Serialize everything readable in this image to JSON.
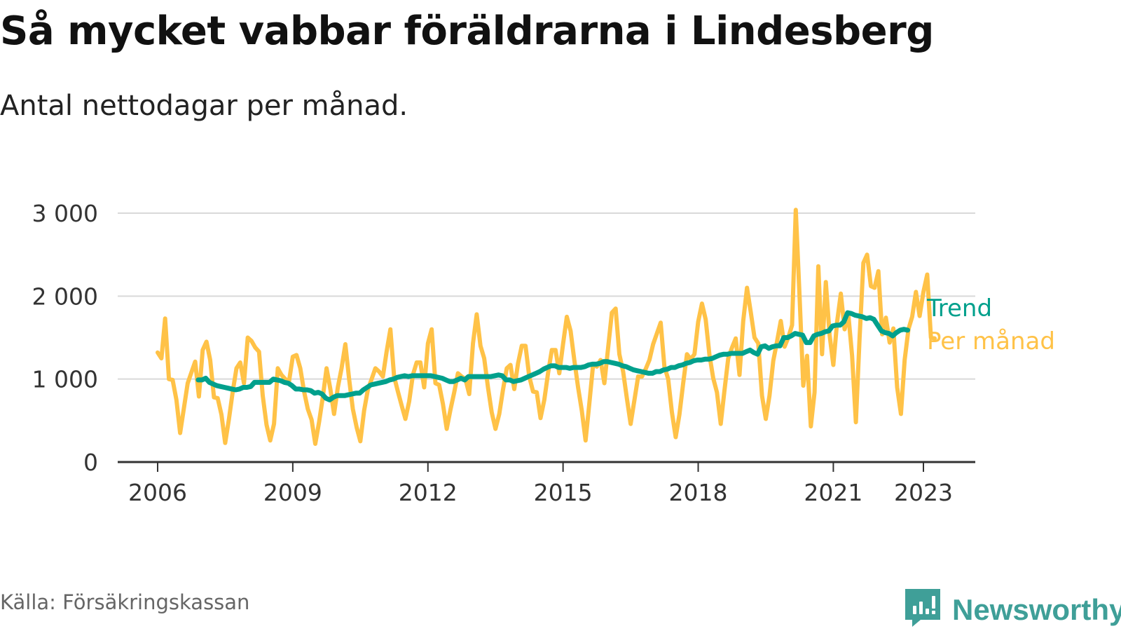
{
  "title": "Så mycket vabbar föräldrarna i Lindesberg",
  "subtitle": "Antal nettodagar per månad.",
  "source": "Källa: Försäkringskassan",
  "brand": {
    "name": "Newsworthy",
    "icon": "newsworthy-logo-icon",
    "color": "#3f9f98"
  },
  "colors": {
    "trend": "#00a08c",
    "monthly": "#ffc247",
    "grid": "#d9d9d9",
    "axis": "#333333"
  },
  "chart_data": {
    "type": "line",
    "title": "Så mycket vabbar föräldrarna i Lindesberg",
    "subtitle": "Antal nettodagar per månad.",
    "xlabel": "",
    "ylabel": "",
    "xlim": [
      2005.2,
      2024.2
    ],
    "ylim": [
      0,
      3000
    ],
    "y_ticks": [
      0,
      1000,
      2000,
      3000
    ],
    "y_tick_labels": [
      "0",
      "1 000",
      "2 000",
      "3 000"
    ],
    "x_ticks": [
      2006,
      2009,
      2012,
      2015,
      2018,
      2021,
      2023
    ],
    "x_tick_labels": [
      "2006",
      "2009",
      "2012",
      "2015",
      "2018",
      "2021",
      "2023"
    ],
    "grid": true,
    "legend": "direct labels at line ends (right)",
    "series": [
      {
        "name": "Per månad",
        "color": "#ffc247",
        "start": 2006.0,
        "step_months": 1,
        "values": [
          1320,
          1250,
          1730,
          1000,
          990,
          750,
          350,
          650,
          950,
          1080,
          1210,
          790,
          1350,
          1450,
          1230,
          780,
          770,
          570,
          230,
          520,
          850,
          1130,
          1200,
          950,
          1500,
          1460,
          1380,
          1330,
          800,
          450,
          260,
          460,
          1130,
          1050,
          1000,
          970,
          1270,
          1290,
          1130,
          850,
          640,
          510,
          220,
          480,
          780,
          1130,
          880,
          580,
          900,
          1130,
          1420,
          1000,
          640,
          420,
          250,
          620,
          870,
          1000,
          1130,
          1090,
          1030,
          1330,
          1600,
          1030,
          850,
          680,
          520,
          730,
          1050,
          1200,
          1200,
          900,
          1430,
          1600,
          950,
          930,
          700,
          400,
          630,
          840,
          1070,
          1030,
          1000,
          820,
          1430,
          1780,
          1400,
          1250,
          900,
          600,
          400,
          580,
          870,
          1130,
          1170,
          880,
          1190,
          1400,
          1400,
          1030,
          850,
          840,
          530,
          750,
          1070,
          1350,
          1350,
          1070,
          1420,
          1750,
          1580,
          1230,
          900,
          620,
          260,
          710,
          1170,
          1150,
          1230,
          950,
          1370,
          1800,
          1850,
          1300,
          1090,
          770,
          460,
          740,
          1030,
          1030,
          1120,
          1230,
          1420,
          1550,
          1680,
          1150,
          1000,
          600,
          300,
          570,
          950,
          1300,
          1240,
          1300,
          1690,
          1910,
          1720,
          1290,
          1010,
          840,
          460,
          860,
          1250,
          1380,
          1490,
          1050,
          1700,
          2100,
          1810,
          1500,
          1430,
          800,
          520,
          800,
          1220,
          1450,
          1700,
          1390,
          1500,
          1650,
          3040,
          2000,
          920,
          1280,
          430,
          840,
          2360,
          1300,
          2170,
          1530,
          1170,
          1690,
          2030,
          1600,
          1780,
          1280,
          480,
          1500,
          2400,
          2500,
          2120,
          2100,
          2300,
          1540,
          1740,
          1440,
          1610,
          900,
          580,
          1230,
          1600,
          1750,
          2050,
          1760,
          2050,
          2260,
          1500,
          1490
        ]
      },
      {
        "name": "Trend",
        "color": "#00a08c",
        "start": 2006.9,
        "step_months": 1,
        "values": [
          990,
          990,
          1010,
          960,
          940,
          920,
          910,
          900,
          890,
          880,
          870,
          880,
          900,
          900,
          910,
          960,
          960,
          960,
          960,
          960,
          1000,
          990,
          980,
          960,
          950,
          920,
          880,
          880,
          870,
          870,
          860,
          830,
          840,
          820,
          770,
          750,
          780,
          800,
          800,
          800,
          810,
          820,
          830,
          830,
          870,
          900,
          930,
          940,
          950,
          960,
          970,
          990,
          1000,
          1020,
          1030,
          1040,
          1030,
          1040,
          1040,
          1040,
          1040,
          1040,
          1040,
          1030,
          1020,
          1010,
          990,
          970,
          970,
          990,
          1010,
          990,
          1030,
          1030,
          1030,
          1030,
          1030,
          1030,
          1030,
          1040,
          1050,
          1040,
          990,
          990,
          970,
          980,
          990,
          1010,
          1030,
          1050,
          1070,
          1090,
          1120,
          1140,
          1160,
          1160,
          1140,
          1140,
          1140,
          1130,
          1140,
          1140,
          1140,
          1150,
          1170,
          1180,
          1180,
          1190,
          1210,
          1210,
          1200,
          1190,
          1180,
          1160,
          1150,
          1130,
          1110,
          1100,
          1090,
          1080,
          1070,
          1070,
          1090,
          1090,
          1110,
          1120,
          1140,
          1140,
          1160,
          1170,
          1190,
          1200,
          1220,
          1230,
          1230,
          1240,
          1240,
          1250,
          1270,
          1290,
          1300,
          1300,
          1310,
          1310,
          1310,
          1310,
          1330,
          1350,
          1320,
          1300,
          1390,
          1400,
          1370,
          1390,
          1400,
          1400,
          1500,
          1500,
          1520,
          1550,
          1540,
          1530,
          1440,
          1440,
          1520,
          1540,
          1550,
          1570,
          1580,
          1640,
          1650,
          1650,
          1690,
          1800,
          1790,
          1770,
          1760,
          1750,
          1730,
          1740,
          1720,
          1650,
          1580,
          1560,
          1550,
          1520,
          1560,
          1590,
          1600,
          1590
        ]
      }
    ],
    "end_labels": [
      {
        "series": "Trend",
        "text": "Trend",
        "color": "#00a08c"
      },
      {
        "series": "Per månad",
        "text": "Per månad",
        "color": "#ffc247"
      }
    ]
  }
}
